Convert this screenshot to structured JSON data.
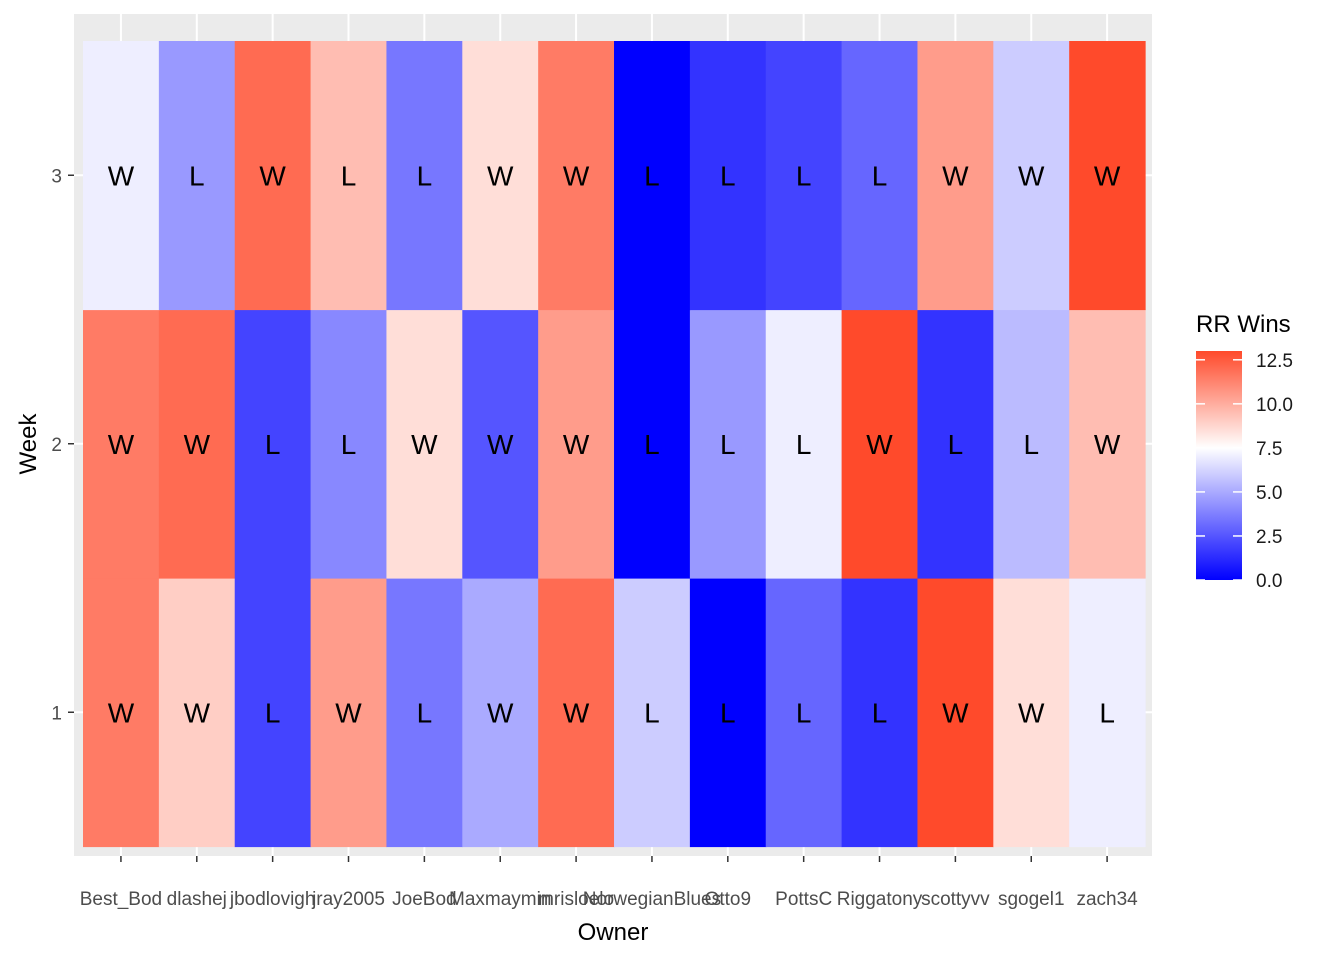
{
  "chart_data": {
    "type": "heatmap",
    "xlabel": "Owner",
    "ylabel": "Week",
    "x_categories": [
      "Best_Bod",
      "dlashej",
      "jbodlovigh",
      "jray2005",
      "JoeBod",
      "Maxmaymin",
      "mrisloelo",
      "NorwegianBlues",
      "Otto9",
      "PottsC",
      "Riggatony",
      "scottyvv",
      "sgogel1",
      "zach34"
    ],
    "y_categories": [
      "1",
      "2",
      "3"
    ],
    "legend": {
      "title": "RR Wins",
      "min": 0,
      "max": 13,
      "ticks": [
        "0.0",
        "2.5",
        "5.0",
        "7.5",
        "10.0",
        "12.5"
      ],
      "low_color": "#0000ff",
      "mid_color": "#ffffff",
      "high_color": "#ff4a2b",
      "placement": "right"
    },
    "grid": true,
    "panel_background": "#ebebeb",
    "cells": [
      {
        "week": "1",
        "owner": "Best_Bod",
        "value": 11.5,
        "label": "W"
      },
      {
        "week": "1",
        "owner": "dlashej",
        "value": 9.0,
        "label": "W"
      },
      {
        "week": "1",
        "owner": "jbodlovigh",
        "value": 2.0,
        "label": "L"
      },
      {
        "week": "1",
        "owner": "jray2005",
        "value": 10.5,
        "label": "W"
      },
      {
        "week": "1",
        "owner": "JoeBod",
        "value": 3.5,
        "label": "L"
      },
      {
        "week": "1",
        "owner": "Maxmaymin",
        "value": 5.0,
        "label": "W"
      },
      {
        "week": "1",
        "owner": "mrisloelo",
        "value": 12.0,
        "label": "W"
      },
      {
        "week": "1",
        "owner": "NorwegianBlues",
        "value": 6.0,
        "label": "L"
      },
      {
        "week": "1",
        "owner": "Otto9",
        "value": 0.0,
        "label": "L"
      },
      {
        "week": "1",
        "owner": "PottsC",
        "value": 3.0,
        "label": "L"
      },
      {
        "week": "1",
        "owner": "Riggatony",
        "value": 1.5,
        "label": "L"
      },
      {
        "week": "1",
        "owner": "scottyvv",
        "value": 13.0,
        "label": "W"
      },
      {
        "week": "1",
        "owner": "sgogel1",
        "value": 8.5,
        "label": "W"
      },
      {
        "week": "1",
        "owner": "zach34",
        "value": 7.0,
        "label": "L"
      },
      {
        "week": "2",
        "owner": "Best_Bod",
        "value": 11.5,
        "label": "W"
      },
      {
        "week": "2",
        "owner": "dlashej",
        "value": 12.0,
        "label": "W"
      },
      {
        "week": "2",
        "owner": "jbodlovigh",
        "value": 2.0,
        "label": "L"
      },
      {
        "week": "2",
        "owner": "jray2005",
        "value": 4.0,
        "label": "L"
      },
      {
        "week": "2",
        "owner": "JoeBod",
        "value": 8.5,
        "label": "W"
      },
      {
        "week": "2",
        "owner": "Maxmaymin",
        "value": 2.5,
        "label": "W"
      },
      {
        "week": "2",
        "owner": "mrisloelo",
        "value": 10.5,
        "label": "W"
      },
      {
        "week": "2",
        "owner": "NorwegianBlues",
        "value": 0.0,
        "label": "L"
      },
      {
        "week": "2",
        "owner": "Otto9",
        "value": 4.5,
        "label": "L"
      },
      {
        "week": "2",
        "owner": "PottsC",
        "value": 7.0,
        "label": "L"
      },
      {
        "week": "2",
        "owner": "Riggatony",
        "value": 13.0,
        "label": "W"
      },
      {
        "week": "2",
        "owner": "scottyvv",
        "value": 1.5,
        "label": "L"
      },
      {
        "week": "2",
        "owner": "sgogel1",
        "value": 5.5,
        "label": "L"
      },
      {
        "week": "2",
        "owner": "zach34",
        "value": 9.5,
        "label": "W"
      },
      {
        "week": "3",
        "owner": "Best_Bod",
        "value": 7.0,
        "label": "W"
      },
      {
        "week": "3",
        "owner": "dlashej",
        "value": 4.5,
        "label": "L"
      },
      {
        "week": "3",
        "owner": "jbodlovigh",
        "value": 12.0,
        "label": "W"
      },
      {
        "week": "3",
        "owner": "jray2005",
        "value": 9.5,
        "label": "L"
      },
      {
        "week": "3",
        "owner": "JoeBod",
        "value": 3.5,
        "label": "L"
      },
      {
        "week": "3",
        "owner": "Maxmaymin",
        "value": 8.5,
        "label": "W"
      },
      {
        "week": "3",
        "owner": "mrisloelo",
        "value": 11.5,
        "label": "W"
      },
      {
        "week": "3",
        "owner": "NorwegianBlues",
        "value": 0.0,
        "label": "L"
      },
      {
        "week": "3",
        "owner": "Otto9",
        "value": 1.5,
        "label": "L"
      },
      {
        "week": "3",
        "owner": "PottsC",
        "value": 2.0,
        "label": "L"
      },
      {
        "week": "3",
        "owner": "Riggatony",
        "value": 3.0,
        "label": "L"
      },
      {
        "week": "3",
        "owner": "scottyvv",
        "value": 10.5,
        "label": "W"
      },
      {
        "week": "3",
        "owner": "sgogel1",
        "value": 6.0,
        "label": "W"
      },
      {
        "week": "3",
        "owner": "zach34",
        "value": 13.0,
        "label": "W"
      }
    ]
  }
}
